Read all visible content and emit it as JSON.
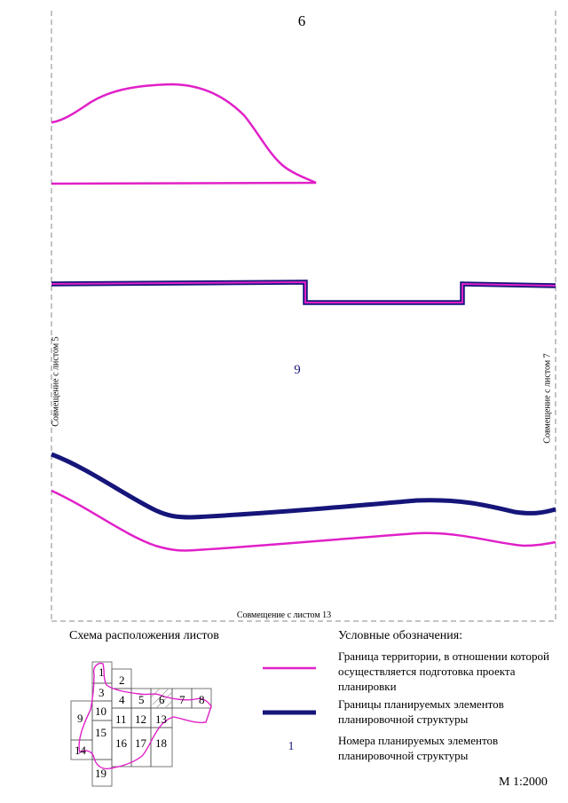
{
  "map": {
    "sheet_number": "6",
    "element_number": "9",
    "join_left": "Совмещение с листом 5",
    "join_right": "Совмещение с листом 7",
    "join_bottom": "Совмещение с листом 13",
    "scale": "М 1:2000"
  },
  "scheme": {
    "title": "Схема расположения листов",
    "cells": [
      "1",
      "2",
      "3",
      "4",
      "5",
      "6",
      "7",
      "8",
      "9",
      "10",
      "11",
      "12",
      "13",
      "14",
      "15",
      "16",
      "17",
      "18",
      "19"
    ],
    "highlighted_sheet": "6"
  },
  "legend": {
    "title": "Условные обозначения:",
    "items": [
      {
        "symbol": "magenta-line",
        "color": "#e020c8",
        "text": "Граница территории, в отношении которой осуществляется подготовка проекта планировки"
      },
      {
        "symbol": "navy-line",
        "color": "#15157a",
        "text": "Границы планируемых элементов планировочной структуры"
      },
      {
        "symbol": "number",
        "value": "1",
        "text": "Номера планируемых элементов планировочной структуры"
      }
    ]
  },
  "colors": {
    "territory_boundary": "#e020c8",
    "element_boundary": "#15157a",
    "frame": "#888888"
  }
}
